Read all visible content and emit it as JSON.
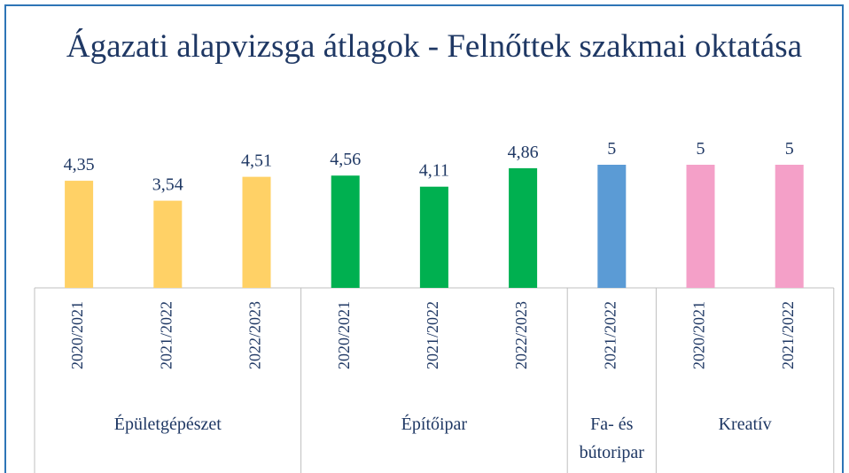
{
  "chart_data": {
    "type": "bar",
    "title": "Ágazati alapvizsga átlagok - Felnőttek szakmai oktatása",
    "ylim": [
      0,
      5
    ],
    "groups": [
      {
        "name": "Épületgépészet",
        "color": "#ffd166",
        "categories": [
          "2020/2021",
          "2021/2022",
          "2022/2023"
        ],
        "values": [
          4.35,
          3.54,
          4.51
        ],
        "value_labels": [
          "4,35",
          "3,54",
          "4,51"
        ]
      },
      {
        "name": "Építőipar",
        "color": "#00b050",
        "categories": [
          "2020/2021",
          "2021/2022",
          "2022/2023"
        ],
        "values": [
          4.56,
          4.11,
          4.86
        ],
        "value_labels": [
          "4,56",
          "4,11",
          "4,86"
        ]
      },
      {
        "name": "Fa- és bútoripar",
        "color": "#5b9bd5",
        "categories": [
          "2021/2022"
        ],
        "values": [
          5
        ],
        "value_labels": [
          "5"
        ]
      },
      {
        "name": "Kreatív",
        "color": "#f4a0c8",
        "categories": [
          "2020/2021",
          "2021/2022"
        ],
        "values": [
          5,
          5
        ],
        "value_labels": [
          "5",
          "5"
        ]
      }
    ]
  }
}
